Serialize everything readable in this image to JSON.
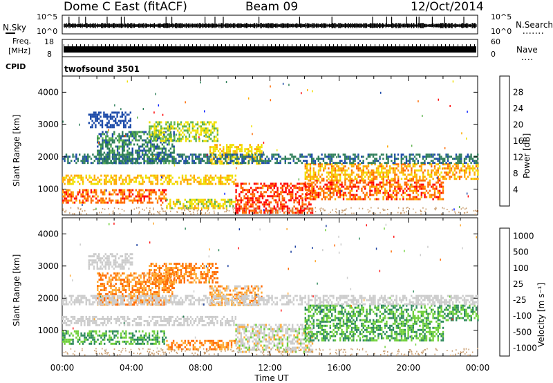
{
  "header": {
    "station": "Dome C East (fitACF)",
    "beam": "Beam 09",
    "date": "12/Oct/2014"
  },
  "strips": {
    "nsky": {
      "label": "N.Sky",
      "ticks": [
        "10^5",
        "10^0"
      ]
    },
    "nsearch": {
      "label": "N.Search",
      "ticks": [
        "10^5",
        "10^0"
      ]
    },
    "freq": {
      "label_line1": "Freq.",
      "label_line2": "[MHz]",
      "ticks": [
        "18",
        "8"
      ]
    },
    "nave": {
      "label": "Nave",
      "ticks": [
        "60",
        "0"
      ]
    },
    "cpid": {
      "label": "CPID",
      "value": "twofsound 3501"
    }
  },
  "colors": {
    "power": [
      "#0018ff",
      "#1c4aa8",
      "#2f7f5a",
      "#5bb24a",
      "#f0e000",
      "#ffaa00",
      "#ff6a00",
      "#ff0000"
    ],
    "velocity": [
      "#ff1a1a",
      "#ff6a00",
      "#ffaa33",
      "#cccccc",
      "#cccccc",
      "#6fd03a",
      "#2e8a5c",
      "#1a3fa0"
    ],
    "scatter": "#c89b6c"
  },
  "chart_data": [
    {
      "type": "heatmap",
      "name": "power",
      "ylabel": "Slant Range [km]",
      "xticks": [
        "00:00",
        "04:00",
        "08:00",
        "12:00",
        "16:00",
        "20:00",
        "00:00"
      ],
      "yticks": [
        1000,
        2000,
        3000,
        4000
      ],
      "ylim": [
        200,
        4500
      ],
      "colorbar": {
        "label": "Power [dB]",
        "ticks": [
          "28",
          "24",
          "20",
          "16",
          "12",
          "8",
          "4"
        ],
        "range": [
          0,
          32
        ]
      },
      "blobs": [
        {
          "t": [
            1.5,
            4.0
          ],
          "r": [
            2900,
            3400
          ],
          "v": [
            4,
            8
          ]
        },
        {
          "t": [
            2.0,
            6.5
          ],
          "r": [
            1800,
            2800
          ],
          "v": [
            6,
            14
          ]
        },
        {
          "t": [
            0.0,
            6.0
          ],
          "r": [
            600,
            1000
          ],
          "v": [
            22,
            30
          ]
        },
        {
          "t": [
            0.0,
            10.0
          ],
          "r": [
            1150,
            1450
          ],
          "v": [
            16,
            24
          ]
        },
        {
          "t": [
            5.0,
            9.0
          ],
          "r": [
            2500,
            3100
          ],
          "v": [
            12,
            20
          ]
        },
        {
          "t": [
            8.5,
            11.5
          ],
          "r": [
            1800,
            2400
          ],
          "v": [
            16,
            22
          ]
        },
        {
          "t": [
            10.0,
            14.5
          ],
          "r": [
            300,
            1200
          ],
          "v": [
            24,
            32
          ]
        },
        {
          "t": [
            14.0,
            22.0
          ],
          "r": [
            700,
            1300
          ],
          "v": [
            22,
            30
          ]
        },
        {
          "t": [
            14.0,
            24.0
          ],
          "r": [
            1300,
            1800
          ],
          "v": [
            18,
            26
          ]
        },
        {
          "t": [
            0.0,
            24.0
          ],
          "r": [
            1800,
            2100
          ],
          "v": [
            6,
            12
          ]
        },
        {
          "t": [
            6.0,
            10.0
          ],
          "r": [
            400,
            700
          ],
          "v": [
            14,
            22
          ]
        }
      ]
    },
    {
      "type": "heatmap",
      "name": "velocity",
      "ylabel": "Slant Range [km]",
      "xlabel": "Time UT",
      "xticks": [
        "00:00",
        "04:00",
        "08:00",
        "12:00",
        "16:00",
        "20:00",
        "00:00"
      ],
      "yticks": [
        1000,
        2000,
        3000,
        4000
      ],
      "ylim": [
        200,
        4500
      ],
      "colorbar": {
        "label": "Velocity [m s⁻¹]",
        "ticks": [
          "1000",
          "500",
          "100",
          "25",
          "-25",
          "-100",
          "-500",
          "-1000"
        ]
      },
      "blobs": [
        {
          "t": [
            1.5,
            4.0
          ],
          "r": [
            2900,
            3400
          ],
          "v": [
            3,
            4
          ]
        },
        {
          "t": [
            2.0,
            6.5
          ],
          "r": [
            1800,
            2800
          ],
          "v": [
            1,
            2
          ]
        },
        {
          "t": [
            0.0,
            6.0
          ],
          "r": [
            600,
            1000
          ],
          "v": [
            5,
            6
          ]
        },
        {
          "t": [
            0.0,
            10.0
          ],
          "r": [
            1150,
            1450
          ],
          "v": [
            3,
            4
          ]
        },
        {
          "t": [
            5.0,
            9.0
          ],
          "r": [
            2500,
            3100
          ],
          "v": [
            1,
            2
          ]
        },
        {
          "t": [
            8.5,
            11.5
          ],
          "r": [
            1800,
            2400
          ],
          "v": [
            1,
            3
          ]
        },
        {
          "t": [
            10.0,
            14.5
          ],
          "r": [
            300,
            1200
          ],
          "v": [
            2,
            5
          ]
        },
        {
          "t": [
            14.0,
            22.0
          ],
          "r": [
            700,
            1300
          ],
          "v": [
            5,
            6
          ]
        },
        {
          "t": [
            14.0,
            24.0
          ],
          "r": [
            1300,
            1800
          ],
          "v": [
            5,
            6
          ]
        },
        {
          "t": [
            0.0,
            24.0
          ],
          "r": [
            1800,
            2100
          ],
          "v": [
            3,
            4
          ]
        },
        {
          "t": [
            6.0,
            10.0
          ],
          "r": [
            400,
            700
          ],
          "v": [
            1,
            2
          ]
        }
      ]
    }
  ]
}
